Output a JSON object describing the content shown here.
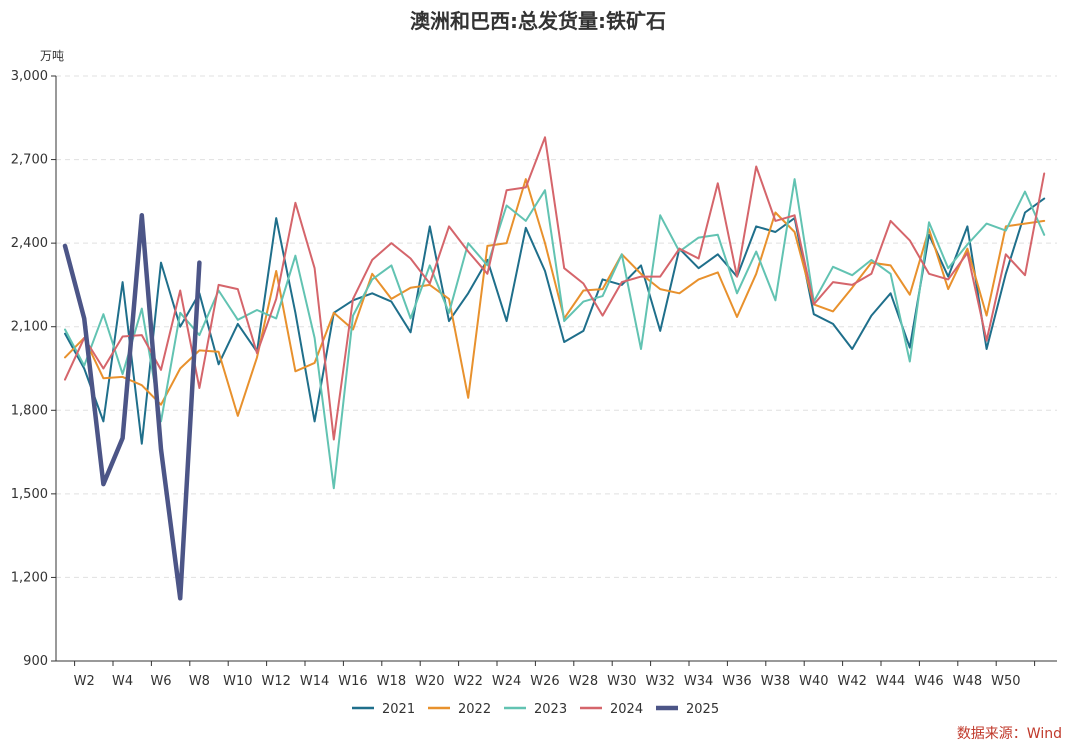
{
  "chart_data": {
    "type": "line",
    "title": "澳洲和巴西:总发货量:铁矿石",
    "ylabel": "万吨",
    "xlabel": "",
    "ylim": [
      900,
      3000
    ],
    "yticks": [
      900,
      1200,
      1500,
      1800,
      2100,
      2400,
      2700,
      3000
    ],
    "ytick_labels": [
      "900",
      "1,200",
      "1,500",
      "1,800",
      "2,100",
      "2,400",
      "2,700",
      "3,000"
    ],
    "grid": "horizontal-dashed",
    "legend_position": "bottom",
    "x_tick_labels": [
      "W2",
      "W4",
      "W6",
      "W8",
      "W10",
      "W12",
      "W14",
      "W16",
      "W18",
      "W20",
      "W22",
      "W24",
      "W26",
      "W28",
      "W30",
      "W32",
      "W34",
      "W36",
      "W38",
      "W40",
      "W42",
      "W44",
      "W46",
      "W48",
      "W50"
    ],
    "x_tick_weeks": [
      2,
      4,
      6,
      8,
      10,
      12,
      14,
      16,
      18,
      20,
      22,
      24,
      26,
      28,
      30,
      32,
      34,
      36,
      38,
      40,
      42,
      44,
      46,
      48,
      50
    ],
    "series": [
      {
        "name": "2021",
        "color": "#1f6f8b",
        "values": [
          2075,
          1950,
          1760,
          2260,
          1680,
          2330,
          2100,
          2220,
          1965,
          2110,
          2010,
          2490,
          2150,
          1760,
          2150,
          2195,
          2220,
          2190,
          2080,
          2460,
          2120,
          2220,
          2340,
          2120,
          2455,
          2300,
          2045,
          2085,
          2270,
          2250,
          2320,
          2085,
          2380,
          2310,
          2360,
          2280,
          2460,
          2440,
          2490,
          2145,
          2110,
          2020,
          2140,
          2220,
          2025,
          2430,
          2280,
          2460,
          2020,
          2290,
          2510,
          2560
        ]
      },
      {
        "name": "2022",
        "color": "#e8912d",
        "values": [
          1990,
          2060,
          1915,
          1920,
          1890,
          1820,
          1950,
          2015,
          2010,
          1780,
          1990,
          2300,
          1940,
          1970,
          2150,
          2090,
          2290,
          2200,
          2240,
          2250,
          2200,
          1845,
          2390,
          2400,
          2630,
          2400,
          2130,
          2230,
          2235,
          2360,
          2290,
          2235,
          2220,
          2270,
          2295,
          2135,
          2290,
          2510,
          2440,
          2180,
          2155,
          2240,
          2330,
          2320,
          2215,
          2450,
          2235,
          2380,
          2140,
          2460,
          2470,
          2480
        ]
      },
      {
        "name": "2023",
        "color": "#62c3b2",
        "values": [
          2090,
          1960,
          2145,
          1930,
          2165,
          1760,
          2150,
          2070,
          2230,
          2125,
          2160,
          2130,
          2355,
          2060,
          1520,
          2140,
          2270,
          2320,
          2130,
          2320,
          2150,
          2400,
          2320,
          2535,
          2480,
          2590,
          2120,
          2190,
          2210,
          2360,
          2020,
          2500,
          2370,
          2420,
          2430,
          2220,
          2370,
          2195,
          2630,
          2190,
          2315,
          2285,
          2340,
          2290,
          1975,
          2475,
          2310,
          2395,
          2470,
          2445,
          2585,
          2430
        ]
      },
      {
        "name": "2024",
        "color": "#d5656b",
        "values": [
          1910,
          2060,
          1950,
          2065,
          2070,
          1945,
          2230,
          1880,
          2250,
          2235,
          2005,
          2200,
          2545,
          2310,
          1695,
          2200,
          2340,
          2400,
          2345,
          2255,
          2460,
          2370,
          2290,
          2590,
          2600,
          2780,
          2310,
          2255,
          2140,
          2260,
          2280,
          2280,
          2380,
          2345,
          2615,
          2280,
          2675,
          2480,
          2500,
          2180,
          2260,
          2250,
          2290,
          2480,
          2410,
          2290,
          2270,
          2365,
          2050,
          2360,
          2285,
          2650
        ]
      },
      {
        "name": "2025",
        "color": "#4c5587",
        "width": 4.5,
        "values": [
          2390,
          2130,
          1535,
          1700,
          2500,
          1660,
          1125,
          2330
        ]
      }
    ]
  },
  "legend": {
    "items": [
      "2021",
      "2022",
      "2023",
      "2024",
      "2025"
    ]
  },
  "source": {
    "label": "数据来源：Wind"
  }
}
